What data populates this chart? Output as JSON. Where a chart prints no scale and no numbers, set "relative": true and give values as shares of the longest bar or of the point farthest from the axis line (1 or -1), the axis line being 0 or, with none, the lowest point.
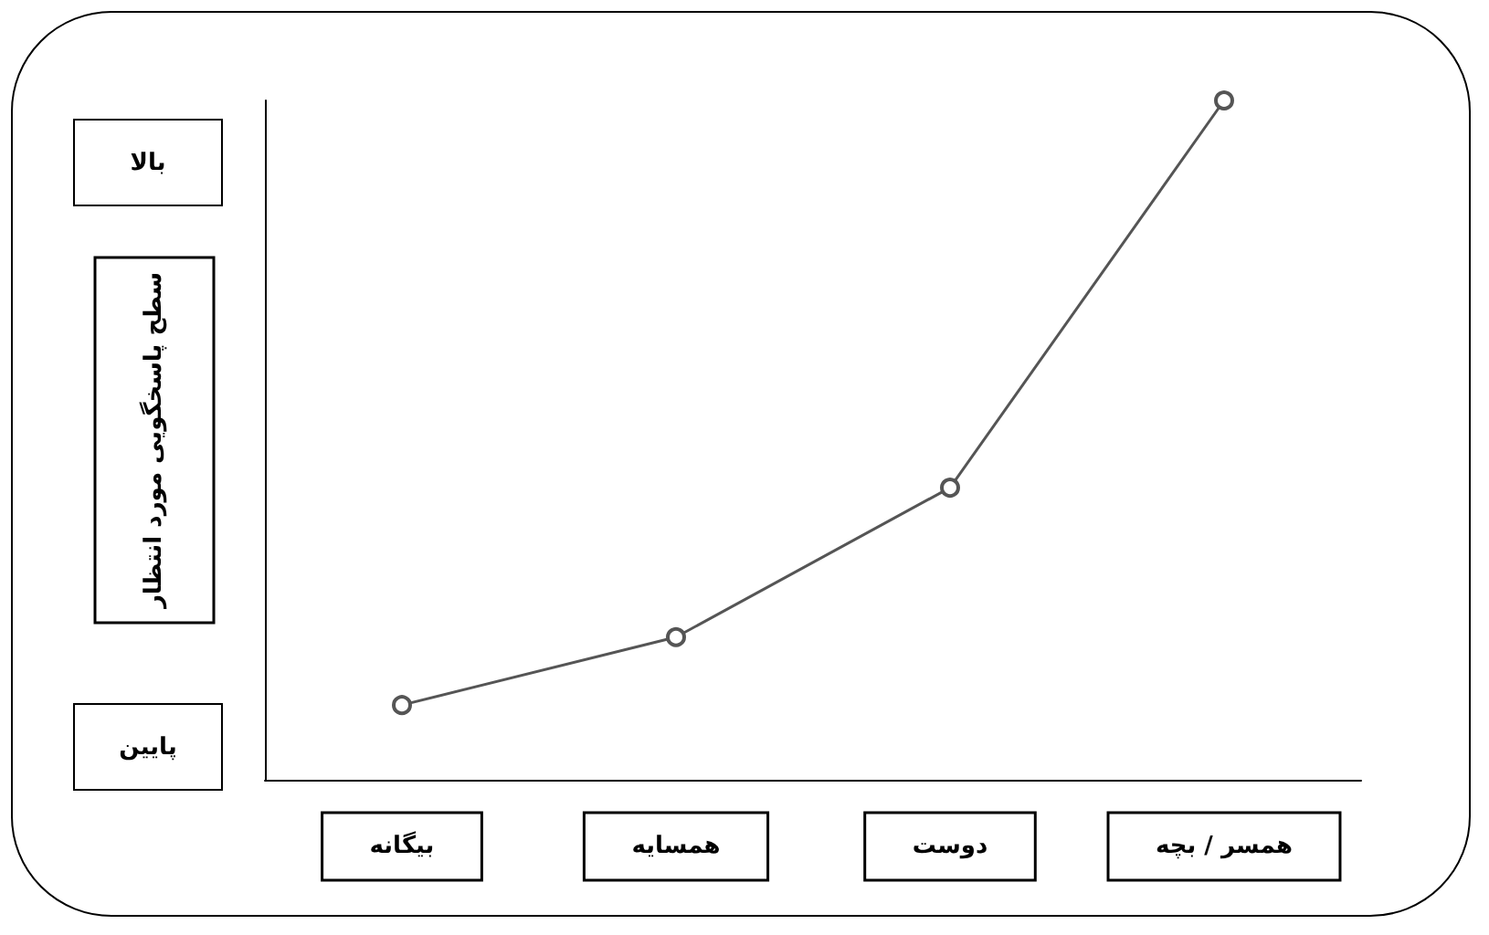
{
  "chart_data": {
    "type": "line",
    "relative": true,
    "ylabel": "سطح پاسخگویی مورد انتظار",
    "categories": [
      "بیگانه",
      "همسایه",
      "دوست",
      "همسر / بچه"
    ],
    "series": [
      {
        "color": "#555555",
        "values": [
          0.11,
          0.21,
          0.43,
          1
        ]
      }
    ],
    "annotations": [
      "بالا",
      "پایین"
    ],
    "marker": "circle",
    "line_style": "solid",
    "grid": false
  }
}
